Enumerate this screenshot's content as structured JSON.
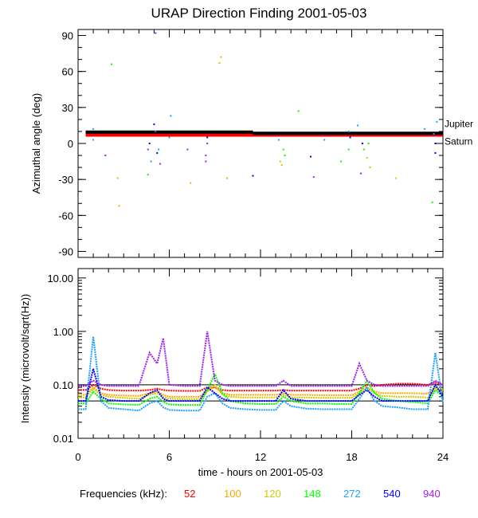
{
  "chart_data": [
    {
      "type": "scatter",
      "title": "URAP Direction Finding  2001-05-03",
      "ylabel": "Azimuthal angle (deg)",
      "xlim": [
        0,
        24
      ],
      "ylim": [
        -95,
        95
      ],
      "yticks": [
        "90",
        "60",
        "30",
        "0",
        "-30",
        "-60",
        "-90"
      ],
      "ytick_values": [
        90,
        60,
        30,
        0,
        -30,
        -60,
        -90
      ],
      "reference_lines": [
        {
          "name": "Jupiter",
          "color": "#000000",
          "segments": [
            [
              0.5,
              11.5,
              9.5
            ],
            [
              11.5,
              24,
              8.5
            ]
          ]
        },
        {
          "name": "Saturn",
          "color": "#ff0000",
          "segments": [
            [
              0.5,
              24,
              7
            ]
          ]
        }
      ],
      "points": [
        {
          "freq": "272",
          "x": 1.0,
          "y": 12
        },
        {
          "freq": "272",
          "x": 1.0,
          "y": 3
        },
        {
          "freq": "148",
          "x": 2.2,
          "y": 66
        },
        {
          "freq": "100",
          "x": 2.7,
          "y": -52
        },
        {
          "freq": "120",
          "x": 2.6,
          "y": -29
        },
        {
          "freq": "940",
          "x": 1.8,
          "y": -10
        },
        {
          "freq": "940",
          "x": 4.6,
          "y": -5
        },
        {
          "freq": "540",
          "x": 4.7,
          "y": 0
        },
        {
          "freq": "272",
          "x": 4.8,
          "y": -15
        },
        {
          "freq": "940",
          "x": 5.1,
          "y": 10
        },
        {
          "freq": "540",
          "x": 5.2,
          "y": -8
        },
        {
          "freq": "272",
          "x": 5.3,
          "y": -5
        },
        {
          "freq": "940",
          "x": 5.4,
          "y": -17
        },
        {
          "freq": "540",
          "x": 5.0,
          "y": 16
        },
        {
          "freq": "148",
          "x": 4.6,
          "y": -26
        },
        {
          "freq": "272",
          "x": 6.1,
          "y": 23
        },
        {
          "freq": "272",
          "x": 6.0,
          "y": 5
        },
        {
          "freq": "940",
          "x": 5.1,
          "y": 92
        },
        {
          "freq": "100",
          "x": 7.4,
          "y": -33
        },
        {
          "freq": "940",
          "x": 7.2,
          "y": -5
        },
        {
          "freq": "940",
          "x": 8.4,
          "y": -10
        },
        {
          "freq": "940",
          "x": 8.5,
          "y": 0
        },
        {
          "freq": "940",
          "x": 8.4,
          "y": -15
        },
        {
          "freq": "540",
          "x": 8.5,
          "y": 5
        },
        {
          "freq": "100",
          "x": 9.4,
          "y": 72
        },
        {
          "freq": "120",
          "x": 9.3,
          "y": 67
        },
        {
          "freq": "100",
          "x": 9.8,
          "y": -29
        },
        {
          "freq": "540",
          "x": 11.5,
          "y": -27
        },
        {
          "freq": "120",
          "x": 13.3,
          "y": -15
        },
        {
          "freq": "148",
          "x": 13.5,
          "y": -5
        },
        {
          "freq": "272",
          "x": 13.2,
          "y": 3
        },
        {
          "freq": "148",
          "x": 13.6,
          "y": -10
        },
        {
          "freq": "120",
          "x": 13.4,
          "y": -18
        },
        {
          "freq": "148",
          "x": 14.5,
          "y": 27
        },
        {
          "freq": "272",
          "x": 16.2,
          "y": 3
        },
        {
          "freq": "540",
          "x": 15.3,
          "y": -11
        },
        {
          "freq": "940",
          "x": 15.5,
          "y": -28
        },
        {
          "freq": "148",
          "x": 17.3,
          "y": -15
        },
        {
          "freq": "148",
          "x": 17.8,
          "y": -5
        },
        {
          "freq": "540",
          "x": 17.9,
          "y": 5
        },
        {
          "freq": "272",
          "x": 17.8,
          "y": 10
        },
        {
          "freq": "940",
          "x": 18.6,
          "y": -25
        },
        {
          "freq": "148",
          "x": 18.8,
          "y": -5
        },
        {
          "freq": "120",
          "x": 19.0,
          "y": -12
        },
        {
          "freq": "540",
          "x": 18.7,
          "y": 0
        },
        {
          "freq": "148",
          "x": 19.1,
          "y": 0
        },
        {
          "freq": "120",
          "x": 19.2,
          "y": -20
        },
        {
          "freq": "272",
          "x": 18.4,
          "y": 15
        },
        {
          "freq": "120",
          "x": 20.9,
          "y": -29
        },
        {
          "freq": "272",
          "x": 22.8,
          "y": 12
        },
        {
          "freq": "148",
          "x": 23.3,
          "y": -49
        },
        {
          "freq": "272",
          "x": 23.6,
          "y": 18
        },
        {
          "freq": "540",
          "x": 23.5,
          "y": 0
        },
        {
          "freq": "540",
          "x": 23.5,
          "y": -8
        },
        {
          "freq": "272",
          "x": 23.4,
          "y": 8
        }
      ]
    },
    {
      "type": "line",
      "ylabel": "Intensity (microvolt/sqrt(Hz))",
      "xlabel": "time - hours on 2001-05-03",
      "xlim": [
        0,
        24
      ],
      "ylim": [
        0.01,
        10
      ],
      "yscale": "log",
      "xticks": [
        "0",
        "6",
        "12",
        "18",
        "24"
      ],
      "xtick_values": [
        0,
        6,
        12,
        18,
        24
      ],
      "yticks": [
        "10.00",
        "1.00",
        "0.10",
        "0.01"
      ],
      "ytick_values": [
        10,
        1,
        0.1,
        0.01
      ],
      "x": [
        0,
        0.5,
        1,
        1.5,
        2,
        3,
        4,
        4.7,
        5.2,
        5.6,
        6,
        7,
        8,
        8.5,
        9,
        9.5,
        10,
        11,
        12,
        13,
        13.5,
        14,
        15,
        16,
        17,
        18,
        18.5,
        19,
        19.5,
        20,
        21,
        22,
        23,
        23.5,
        24
      ],
      "series": [
        {
          "name": "52",
          "color": "#ff0000",
          "values": [
            0.08,
            0.08,
            0.1,
            0.085,
            0.08,
            0.078,
            0.078,
            0.08,
            0.085,
            0.08,
            0.078,
            0.077,
            0.077,
            0.09,
            0.09,
            0.08,
            0.078,
            0.078,
            0.078,
            0.078,
            0.08,
            0.078,
            0.078,
            0.078,
            0.078,
            0.078,
            0.085,
            0.1,
            0.095,
            0.1,
            0.105,
            0.105,
            0.1,
            0.11,
            0.1
          ]
        },
        {
          "name": "100",
          "color": "#ffa500",
          "values": [
            0.065,
            0.065,
            0.09,
            0.07,
            0.065,
            0.063,
            0.062,
            0.07,
            0.075,
            0.065,
            0.06,
            0.06,
            0.06,
            0.08,
            0.09,
            0.07,
            0.065,
            0.065,
            0.065,
            0.065,
            0.07,
            0.065,
            0.065,
            0.064,
            0.064,
            0.064,
            0.075,
            0.09,
            0.075,
            0.07,
            0.07,
            0.07,
            0.068,
            0.09,
            0.08
          ]
        },
        {
          "name": "120",
          "color": "#cccc00",
          "values": [
            0.058,
            0.058,
            0.085,
            0.065,
            0.06,
            0.057,
            0.055,
            0.065,
            0.07,
            0.06,
            0.055,
            0.054,
            0.054,
            0.075,
            0.1,
            0.065,
            0.06,
            0.058,
            0.058,
            0.058,
            0.065,
            0.058,
            0.058,
            0.057,
            0.057,
            0.057,
            0.07,
            0.09,
            0.07,
            0.062,
            0.06,
            0.06,
            0.058,
            0.085,
            0.07
          ]
        },
        {
          "name": "148",
          "color": "#00ff00",
          "values": [
            0.045,
            0.045,
            0.075,
            0.055,
            0.045,
            0.043,
            0.042,
            0.055,
            0.06,
            0.048,
            0.043,
            0.042,
            0.042,
            0.08,
            0.16,
            0.07,
            0.05,
            0.045,
            0.044,
            0.044,
            0.06,
            0.05,
            0.045,
            0.045,
            0.044,
            0.044,
            0.07,
            0.12,
            0.07,
            0.055,
            0.05,
            0.048,
            0.045,
            0.08,
            0.06
          ]
        },
        {
          "name": "272",
          "color": "#1ea0ff",
          "values": [
            0.035,
            0.035,
            0.8,
            0.05,
            0.037,
            0.035,
            0.033,
            0.045,
            0.05,
            0.038,
            0.034,
            0.033,
            0.033,
            0.06,
            0.07,
            0.045,
            0.037,
            0.035,
            0.034,
            0.034,
            0.05,
            0.04,
            0.036,
            0.035,
            0.035,
            0.035,
            0.055,
            0.09,
            0.05,
            0.04,
            0.038,
            0.035,
            0.035,
            0.4,
            0.045
          ]
        },
        {
          "name": "540",
          "color": "#0000ff",
          "values": [
            0.05,
            0.05,
            0.2,
            0.06,
            0.052,
            0.05,
            0.05,
            0.07,
            0.08,
            0.055,
            0.05,
            0.05,
            0.05,
            0.09,
            0.07,
            0.055,
            0.05,
            0.05,
            0.05,
            0.05,
            0.08,
            0.055,
            0.05,
            0.05,
            0.05,
            0.05,
            0.065,
            0.08,
            0.06,
            0.05,
            0.05,
            0.05,
            0.05,
            0.1,
            0.06
          ]
        },
        {
          "name": "940",
          "color": "#a020f0",
          "values": [
            0.095,
            0.095,
            0.12,
            0.1,
            0.095,
            0.095,
            0.095,
            0.4,
            0.25,
            0.75,
            0.1,
            0.095,
            0.095,
            1.0,
            0.12,
            0.1,
            0.095,
            0.095,
            0.095,
            0.095,
            0.12,
            0.095,
            0.095,
            0.095,
            0.095,
            0.095,
            0.25,
            0.12,
            0.1,
            0.095,
            0.095,
            0.095,
            0.095,
            0.12,
            0.1
          ]
        }
      ],
      "legend_title": "Frequencies (kHz):",
      "legend_placement": "bottom"
    }
  ]
}
